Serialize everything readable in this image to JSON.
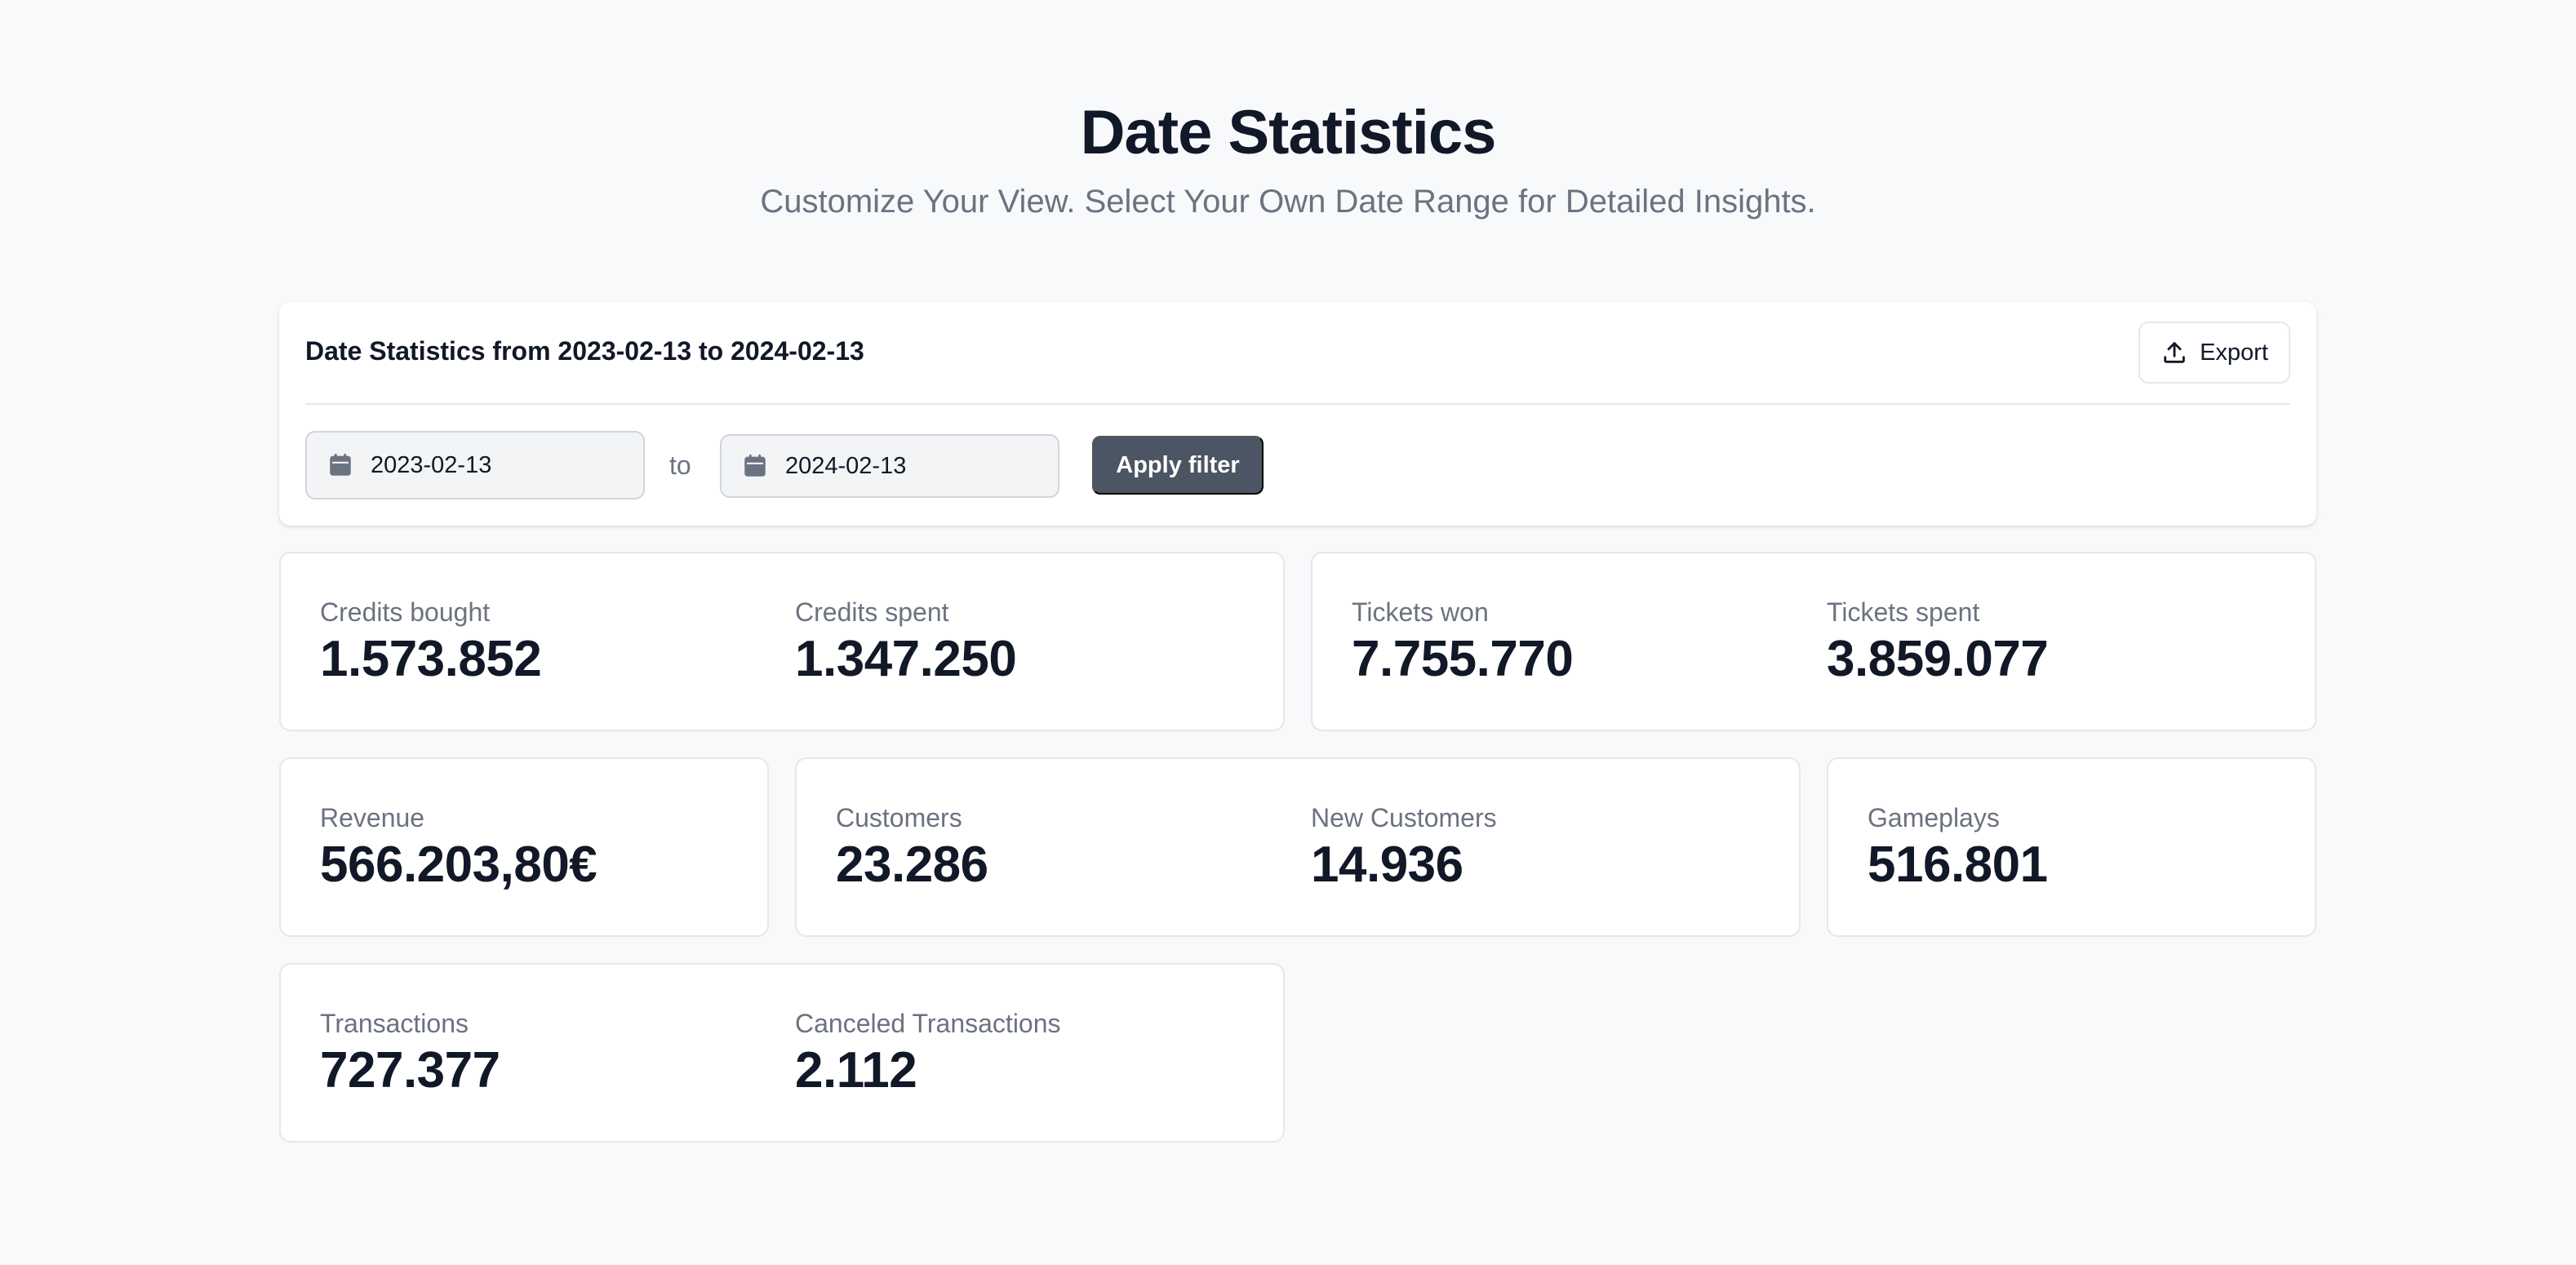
{
  "header": {
    "title": "Date Statistics",
    "subtitle": "Customize Your View. Select Your Own Date Range for Detailed Insights."
  },
  "filter": {
    "title": "Date Statistics from 2023-02-13 to 2024-02-13",
    "export_label": "Export",
    "from_value": "2023-02-13",
    "to_label": "to",
    "to_value": "2024-02-13",
    "apply_label": "Apply filter",
    "icons": {
      "export": "upload-icon",
      "date": "calendar-icon"
    }
  },
  "stats": {
    "credits_bought": {
      "label": "Credits bought",
      "value": "1.573.852"
    },
    "credits_spent": {
      "label": "Credits spent",
      "value": "1.347.250"
    },
    "tickets_won": {
      "label": "Tickets won",
      "value": "7.755.770"
    },
    "tickets_spent": {
      "label": "Tickets spent",
      "value": "3.859.077"
    },
    "revenue": {
      "label": "Revenue",
      "value": "566.203,80€"
    },
    "customers": {
      "label": "Customers",
      "value": "23.286"
    },
    "new_customers": {
      "label": "New Customers",
      "value": "14.936"
    },
    "gameplays": {
      "label": "Gameplays",
      "value": "516.801"
    },
    "transactions": {
      "label": "Transactions",
      "value": "727.377"
    },
    "canceled_transactions": {
      "label": "Canceled Transactions",
      "value": "2.112"
    }
  },
  "colors": {
    "background": "#f8f9fb",
    "card": "#ffffff",
    "border": "#e5e7eb",
    "text_primary": "#111827",
    "text_muted": "#6b7280",
    "button": "#4b5563"
  }
}
